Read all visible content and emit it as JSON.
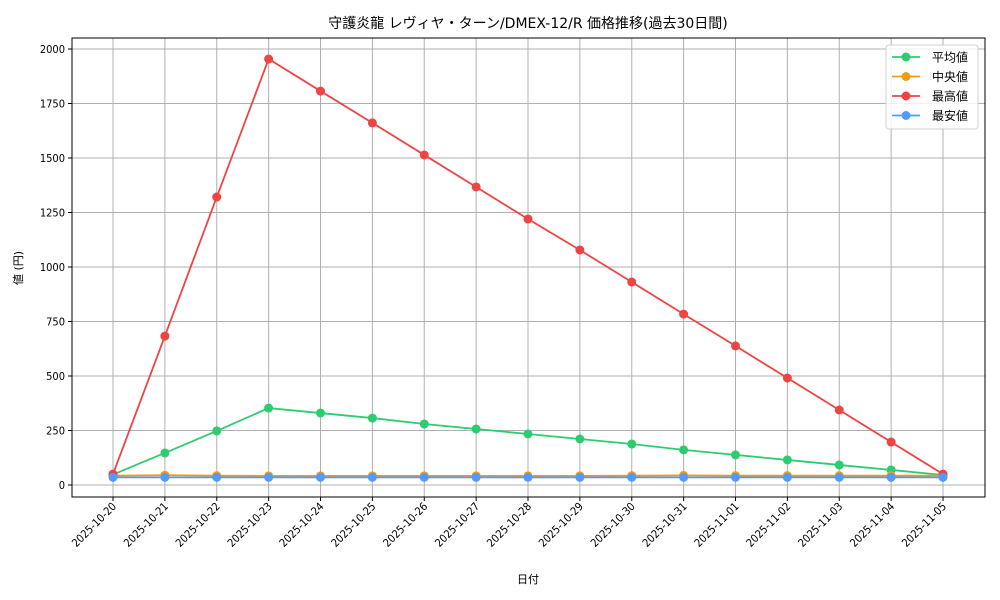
{
  "chart_data": {
    "type": "line",
    "title": "守護炎龍 レヴィヤ・ターン/DMEX-12/R 価格推移(過去30日間)",
    "xlabel": "日付",
    "ylabel": "値 (円)",
    "ylim": [
      -60,
      2070
    ],
    "yticks": [
      0,
      250,
      500,
      750,
      1000,
      1250,
      1500,
      1750,
      2000
    ],
    "grid": true,
    "legend_position": "upper right",
    "categories": [
      "2025-10-20",
      "2025-10-21",
      "2025-10-22",
      "2025-10-23",
      "2025-10-24",
      "2025-10-25",
      "2025-10-26",
      "2025-10-27",
      "2025-10-28",
      "2025-10-29",
      "2025-10-30",
      "2025-10-31",
      "2025-11-01",
      "2025-11-02",
      "2025-11-03",
      "2025-11-04",
      "2025-11-05"
    ],
    "series": [
      {
        "name": "平均値",
        "color": "#2ecc71",
        "values": [
          48,
          147,
          248,
          353,
          330,
          307,
          280,
          257,
          234,
          211,
          188,
          161,
          138,
          115,
          92,
          69,
          46
        ]
      },
      {
        "name": "中央値",
        "color": "#f39c12",
        "values": [
          43,
          45,
          43,
          42,
          42,
          42,
          42,
          42,
          42,
          42,
          43,
          44,
          43,
          43,
          43,
          43,
          43
        ]
      },
      {
        "name": "最高値",
        "color": "#ef4444",
        "values": [
          50,
          683,
          1321,
          1954,
          1807,
          1661,
          1514,
          1367,
          1220,
          1078,
          931,
          784,
          638,
          491,
          344,
          197,
          50
        ]
      },
      {
        "name": "最安値",
        "color": "#4f9bff",
        "values": [
          35,
          35,
          35,
          35,
          35,
          35,
          35,
          35,
          35,
          35,
          35,
          35,
          35,
          35,
          35,
          35,
          35
        ]
      }
    ]
  },
  "legend": {
    "items": [
      {
        "label": "平均値",
        "color": "#2ecc71"
      },
      {
        "label": "中央値",
        "color": "#f39c12"
      },
      {
        "label": "最高値",
        "color": "#ef4444"
      },
      {
        "label": "最安値",
        "color": "#4f9bff"
      }
    ]
  }
}
